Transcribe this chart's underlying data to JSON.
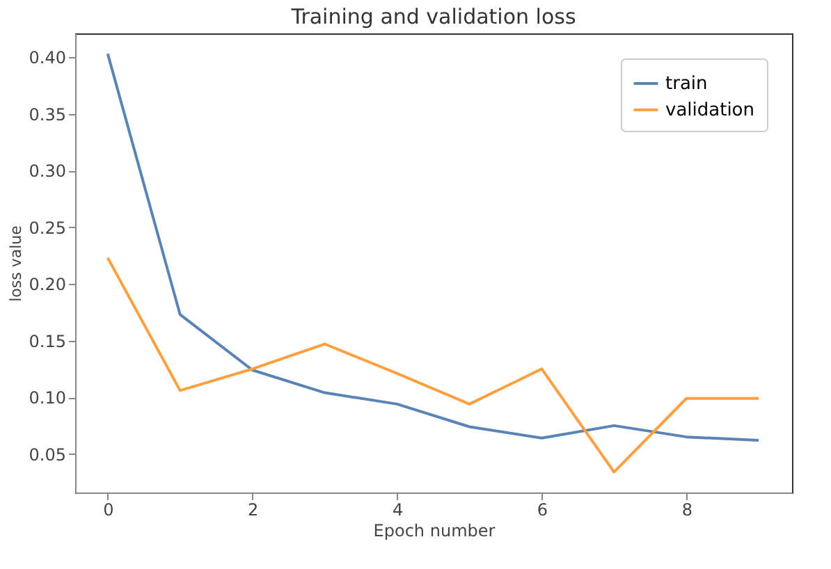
{
  "chart_data": {
    "type": "line",
    "title": "Training and validation loss",
    "xlabel": "Epoch number",
    "ylabel": "loss value",
    "x": [
      0,
      1,
      2,
      3,
      4,
      5,
      6,
      7,
      8,
      9
    ],
    "series": [
      {
        "name": "train",
        "color": "#5b84b6",
        "values": [
          0.403,
          0.173,
          0.124,
          0.104,
          0.094,
          0.074,
          0.064,
          0.075,
          0.065,
          0.062
        ]
      },
      {
        "name": "validation",
        "color": "#ffa040",
        "values": [
          0.223,
          0.106,
          0.125,
          0.147,
          0.121,
          0.094,
          0.125,
          0.034,
          0.099,
          0.099
        ]
      }
    ],
    "xlim": [
      -0.45,
      9.46
    ],
    "ylim": [
      0.016,
      0.421
    ],
    "xticks": [
      0,
      2,
      4,
      6,
      8
    ],
    "yticks": [
      0.05,
      {
        "value": 0.1,
        "label": "0.10"
      },
      0.15,
      {
        "value": 0.2,
        "label": "0.20"
      },
      0.25,
      {
        "value": 0.3,
        "label": "0.30"
      },
      0.35,
      {
        "value": 0.4,
        "label": "0.40"
      }
    ],
    "grid": false,
    "legend": "top right",
    "marker": "none",
    "line_style": "solid"
  }
}
